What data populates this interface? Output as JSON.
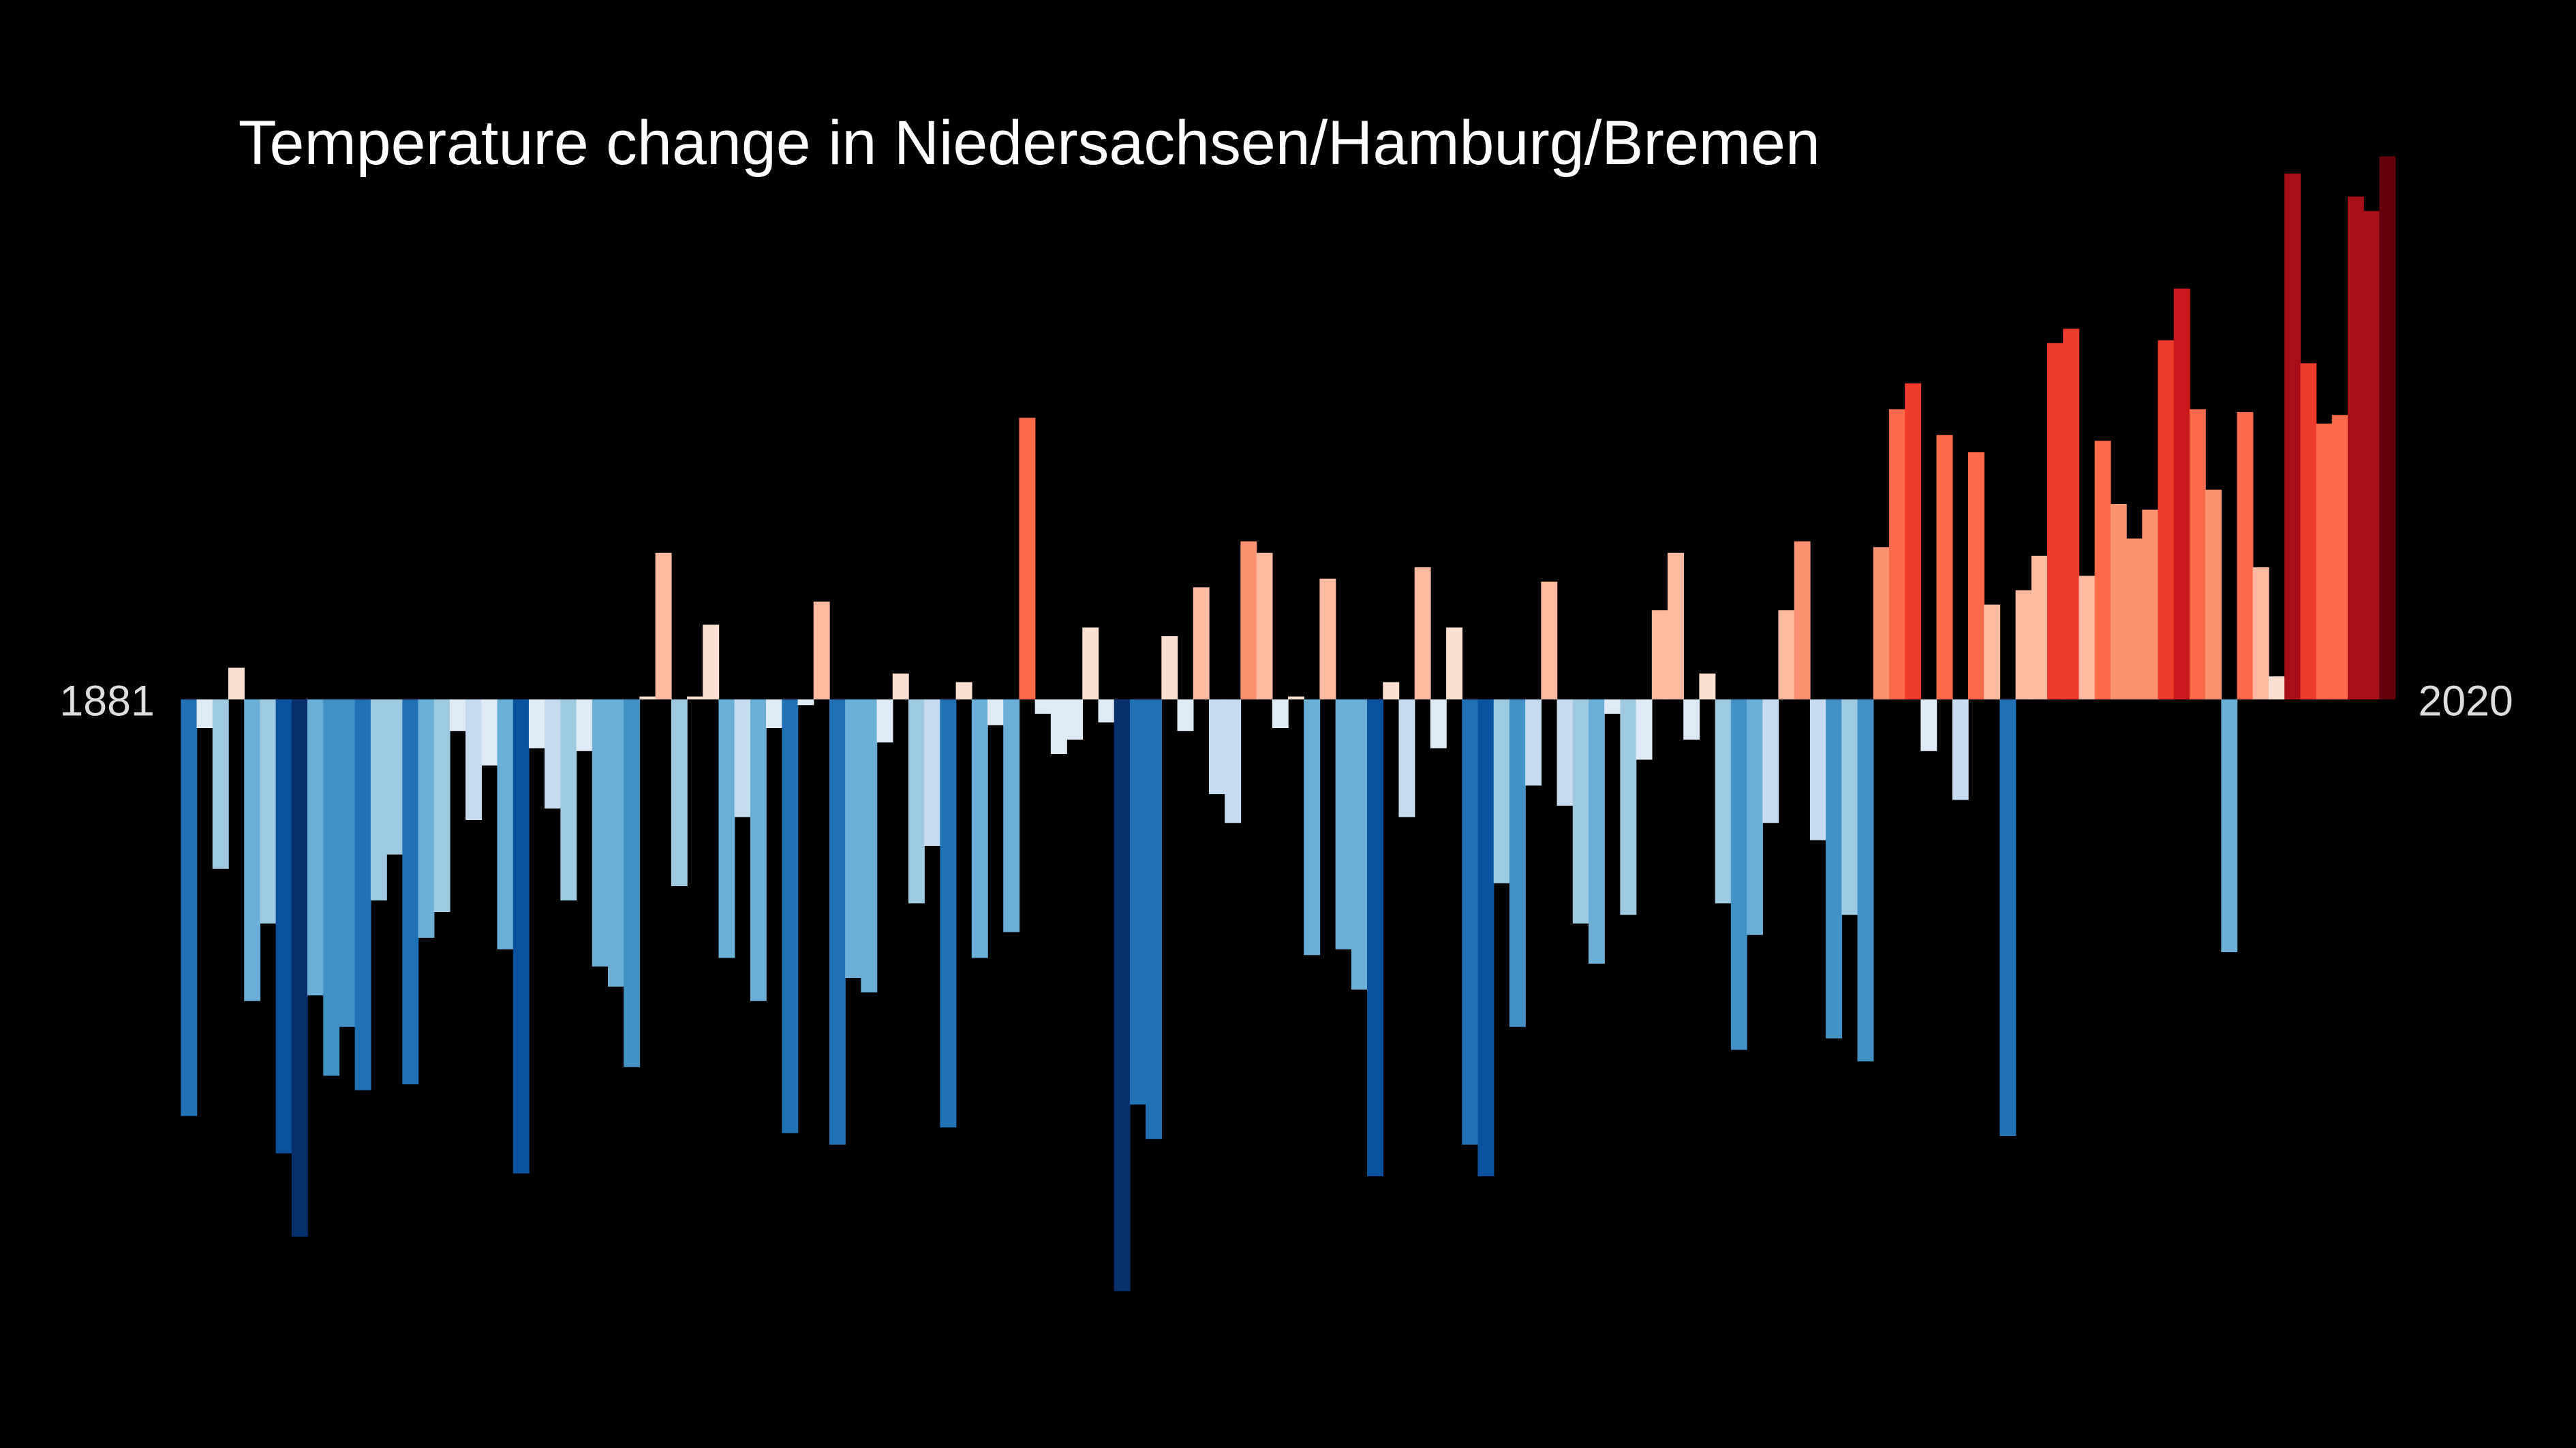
{
  "chart_data": {
    "type": "bar",
    "title": "Temperature change in Niedersachsen/Hamburg/Bremen",
    "categories": [
      1881,
      null,
      null,
      null,
      null,
      null,
      null,
      null,
      null,
      null,
      null,
      null,
      null,
      null,
      null,
      null,
      null,
      null,
      null,
      null,
      null,
      null,
      null,
      null,
      null,
      null,
      null,
      null,
      null,
      null,
      null,
      null,
      null,
      null,
      null,
      null,
      null,
      null,
      null,
      null,
      null,
      null,
      null,
      null,
      null,
      null,
      null,
      null,
      null,
      null,
      null,
      null,
      null,
      null,
      null,
      null,
      null,
      null,
      null,
      null,
      null,
      null,
      null,
      null,
      null,
      null,
      null,
      null,
      null,
      null,
      null,
      null,
      null,
      null,
      null,
      null,
      null,
      null,
      null,
      null,
      null,
      null,
      null,
      null,
      null,
      null,
      null,
      null,
      null,
      null,
      null,
      null,
      null,
      null,
      null,
      null,
      null,
      null,
      null,
      null,
      null,
      null,
      null,
      null,
      null,
      null,
      null,
      null,
      null,
      null,
      null,
      null,
      null,
      null,
      null,
      null,
      null,
      null,
      null,
      null,
      null,
      null,
      null,
      null,
      null,
      null,
      null,
      null,
      null,
      null,
      null,
      null,
      null,
      null,
      null,
      null,
      null,
      null,
      null,
      2020
    ],
    "values": [
      -1.45,
      -0.1,
      -0.59,
      0.11,
      -1.05,
      -0.78,
      -1.58,
      -1.87,
      -1.03,
      -1.31,
      -1.14,
      -1.36,
      -0.7,
      -0.54,
      -1.34,
      -0.83,
      -0.74,
      -0.11,
      -0.42,
      -0.23,
      -0.87,
      -1.65,
      -0.17,
      -0.38,
      -0.7,
      -0.18,
      -0.93,
      -1.0,
      -1.28,
      0.01,
      0.51,
      -0.65,
      0.01,
      0.26,
      -0.9,
      -0.41,
      -1.05,
      -0.1,
      -1.51,
      -0.02,
      0.34,
      -1.55,
      -0.97,
      -1.02,
      -0.15,
      0.09,
      -0.71,
      -0.51,
      -1.49,
      0.06,
      -0.9,
      -0.09,
      -0.81,
      0.98,
      -0.05,
      -0.19,
      -0.14,
      0.25,
      -0.08,
      -2.06,
      -1.41,
      -1.53,
      0.22,
      -0.11,
      0.39,
      -0.33,
      -0.43,
      0.55,
      0.51,
      -0.1,
      0.01,
      -0.89,
      0.42,
      -0.87,
      -1.01,
      -1.66,
      0.06,
      -0.41,
      0.46,
      -0.17,
      0.25,
      -1.55,
      -1.66,
      -0.64,
      -1.14,
      -0.3,
      0.41,
      -0.37,
      -0.78,
      -0.92,
      -0.05,
      -0.75,
      -0.21,
      0.31,
      0.51,
      -0.14,
      0.09,
      -0.71,
      -1.22,
      -0.82,
      -0.43,
      0.31,
      0.55,
      -0.49,
      -1.18,
      -0.75,
      -1.26,
      0.53,
      1.01,
      1.1,
      -0.18,
      0.92,
      -0.35,
      0.86,
      0.33,
      -1.52,
      0.38,
      0.5,
      1.24,
      1.29,
      0.43,
      0.9,
      0.68,
      0.56,
      0.66,
      1.25,
      1.43,
      1.01,
      0.73,
      -0.88,
      1.0,
      0.46,
      0.08,
      1.83,
      1.17,
      0.96,
      0.99,
      1.75,
      1.7,
      1.89
    ],
    "ylim": [
      -2.1,
      2.1
    ],
    "colormap": [
      "#08306b",
      "#08519c",
      "#2171b5",
      "#4292c6",
      "#6baed6",
      "#9ecae1",
      "#c6dbef",
      "#deebf7",
      "#fee0d2",
      "#fcbba1",
      "#fc9272",
      "#fb6a4a",
      "#ef3b2c",
      "#cb181d",
      "#a50f15",
      "#67000d"
    ]
  }
}
